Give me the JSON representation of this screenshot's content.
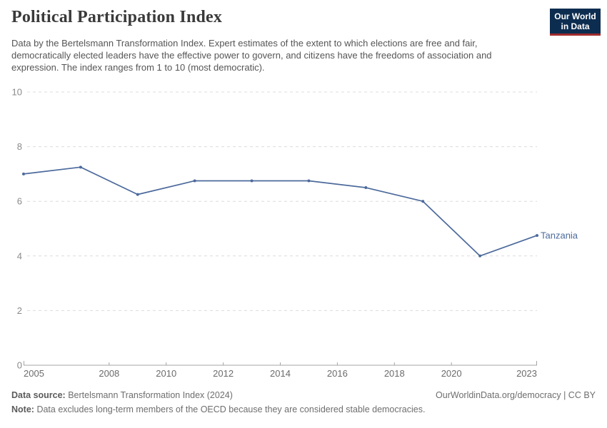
{
  "header": {
    "title": "Political Participation Index"
  },
  "logo": {
    "line1": "Our World",
    "line2": "in Data",
    "bg_color": "#0d2d50",
    "bar_color": "#a02b2d"
  },
  "chart_data": {
    "type": "line",
    "title": "Political Participation Index",
    "subtitle": "Data by the Bertelsmann Transformation Index. Expert estimates of the extent to which elections are free and fair, democratically elected leaders have the effective power to govern, and citizens have the freedoms of association and expression. The index ranges from 1 to 10 (most democratic).",
    "x": [
      2005,
      2007,
      2009,
      2011,
      2013,
      2015,
      2017,
      2019,
      2021,
      2023
    ],
    "series": [
      {
        "name": "Tanzania",
        "values": [
          7,
          7.25,
          6.25,
          6.75,
          6.75,
          6.75,
          6.5,
          6,
          4,
          4.75
        ],
        "color": "#4c6a9c"
      }
    ],
    "ylim": [
      0,
      10
    ],
    "yticks": [
      0,
      2,
      4,
      6,
      8,
      10
    ],
    "x_range": [
      2005,
      2023
    ],
    "xticks": [
      2005,
      2008,
      2010,
      2012,
      2014,
      2016,
      2018,
      2020,
      2023
    ],
    "grid": "horizontal-dashed",
    "legend_position": "end-of-line",
    "markers": true,
    "colors": {
      "grid": "#dcdcdc",
      "axis": "#a5a5a5",
      "y_tick_label": "#8a8a8a",
      "x_tick_label": "#6b6b6b"
    }
  },
  "footer": {
    "datasource_label": "Data source:",
    "datasource_value": "Bertelsmann Transformation Index (2024)",
    "link": "OurWorldinData.org/democracy",
    "separator": "|",
    "license": "CC BY",
    "note_label": "Note:",
    "note_value": "Data excludes long-term members of the OECD because they are considered stable democracies."
  }
}
